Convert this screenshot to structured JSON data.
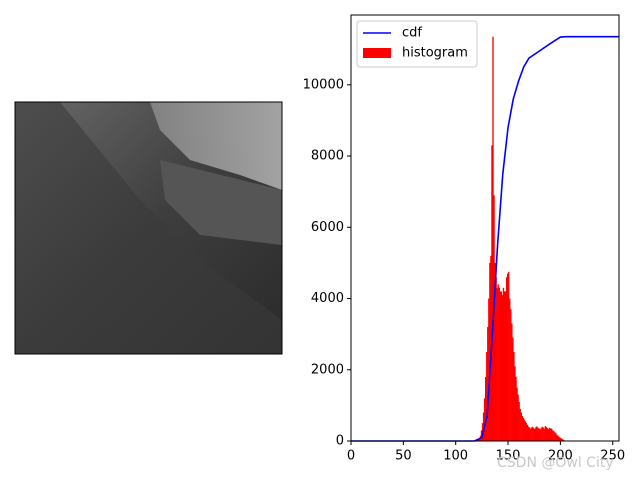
{
  "chart_data": {
    "type": "histogram",
    "name": "histogram",
    "color": "#ff0000",
    "bins": [
      0,
      1,
      2,
      3,
      4,
      5,
      6,
      7,
      8,
      9,
      10,
      11,
      12,
      13,
      14,
      15,
      16,
      17,
      18,
      19,
      20,
      21,
      22,
      23,
      24,
      25,
      26,
      27,
      28,
      29,
      30,
      31,
      32,
      33,
      34,
      35,
      36,
      37,
      38,
      39,
      40,
      41,
      42,
      43,
      44,
      45,
      46,
      47,
      48,
      49,
      50,
      51,
      52,
      53,
      54,
      55,
      56,
      57,
      58,
      59,
      60,
      61,
      62,
      63,
      64,
      65,
      66,
      67,
      68,
      69,
      70,
      71,
      72,
      73,
      74,
      75,
      76,
      77,
      78,
      79,
      80,
      81,
      82,
      83,
      84,
      85,
      86,
      87,
      88,
      89,
      90,
      91,
      92,
      93,
      94,
      95,
      96,
      97,
      98,
      99,
      100,
      101,
      102,
      103,
      104,
      105,
      106,
      107,
      108,
      109,
      110,
      111,
      112,
      113,
      114,
      115,
      116,
      117,
      118,
      119,
      120,
      121,
      122,
      123,
      124,
      125,
      126,
      127,
      128,
      129,
      130,
      131,
      132,
      133,
      134,
      135,
      136,
      137,
      138,
      139,
      140,
      141,
      142,
      143,
      144,
      145,
      146,
      147,
      148,
      149,
      150,
      151,
      152,
      153,
      154,
      155,
      156,
      157,
      158,
      159,
      160,
      161,
      162,
      163,
      164,
      165,
      166,
      167,
      168,
      169,
      170,
      171,
      172,
      173,
      174,
      175,
      176,
      177,
      178,
      179,
      180,
      181,
      182,
      183,
      184,
      185,
      186,
      187,
      188,
      189,
      190,
      191,
      192,
      193,
      194,
      195,
      196,
      197,
      198,
      199,
      200,
      201,
      202,
      203,
      204,
      205,
      206,
      207,
      208,
      209,
      210,
      211,
      212,
      213,
      214,
      215,
      216,
      217,
      218,
      219,
      220,
      221,
      222,
      223,
      224,
      225,
      226,
      227,
      228,
      229,
      230,
      231,
      232,
      233,
      234,
      235,
      236,
      237,
      238,
      239,
      240,
      241,
      242,
      243,
      244,
      245,
      246,
      247,
      248,
      249,
      250,
      251,
      252,
      253,
      254,
      255,
      256
    ],
    "values": [
      0,
      0,
      0,
      0,
      0,
      0,
      0,
      0,
      0,
      0,
      0,
      0,
      0,
      0,
      0,
      0,
      0,
      0,
      0,
      0,
      0,
      0,
      0,
      0,
      0,
      0,
      0,
      0,
      0,
      0,
      0,
      0,
      0,
      0,
      0,
      0,
      0,
      0,
      0,
      0,
      0,
      0,
      0,
      0,
      0,
      0,
      0,
      0,
      0,
      0,
      0,
      0,
      0,
      0,
      0,
      0,
      0,
      0,
      0,
      0,
      0,
      0,
      0,
      0,
      0,
      0,
      0,
      0,
      0,
      0,
      0,
      0,
      0,
      0,
      0,
      0,
      0,
      0,
      0,
      0,
      0,
      0,
      0,
      0,
      0,
      0,
      0,
      0,
      0,
      0,
      0,
      0,
      0,
      0,
      0,
      0,
      0,
      0,
      0,
      0,
      0,
      0,
      0,
      0,
      0,
      0,
      0,
      0,
      0,
      0,
      0,
      0,
      0,
      0,
      0,
      0,
      0,
      0,
      5,
      10,
      20,
      40,
      80,
      150,
      300,
      500,
      800,
      1200,
      1800,
      2500,
      3200,
      4000,
      5000,
      5200,
      8300,
      11350,
      6900,
      5000,
      4600,
      4300,
      4400,
      4300,
      4200,
      4200,
      4100,
      4300,
      4200,
      4200,
      4600,
      4700,
      4750,
      4000,
      3700,
      3300,
      2900,
      2500,
      2100,
      1800,
      1500,
      1300,
      1100,
      900,
      800,
      700,
      650,
      600,
      550,
      500,
      450,
      400,
      380,
      350,
      380,
      400,
      360,
      340,
      390,
      410,
      370,
      350,
      330,
      360,
      400,
      380,
      350,
      420,
      390,
      360,
      340,
      370,
      350,
      350,
      300,
      280,
      250,
      220,
      180,
      150,
      120,
      100,
      80,
      60,
      40,
      20,
      10,
      5,
      0,
      0,
      0,
      0,
      0,
      0,
      0,
      0,
      0,
      0,
      0,
      0,
      0,
      0,
      0,
      0,
      0,
      0,
      0,
      0,
      0,
      0,
      0,
      0,
      0,
      0,
      0,
      0,
      0,
      0,
      0,
      0,
      0,
      0,
      0,
      0,
      0,
      0,
      0,
      0,
      0,
      0,
      0,
      0,
      0,
      0,
      0,
      0,
      0,
      0
    ],
    "line": {
      "name": "cdf",
      "color": "#0000ff",
      "x": [
        0,
        118,
        125,
        130,
        135,
        140,
        145,
        150,
        155,
        160,
        165,
        170,
        180,
        190,
        200,
        205,
        256
      ],
      "values": [
        0,
        0,
        100,
        700,
        3000,
        5500,
        7500,
        8800,
        9600,
        10100,
        10500,
        10750,
        10950,
        11150,
        11340,
        11350,
        11350
      ]
    },
    "xlim": [
      0,
      256
    ],
    "xticks": [
      0,
      50,
      100,
      150,
      200,
      250
    ],
    "ylim": [
      0,
      11960
    ],
    "yticks": [
      0,
      2000,
      4000,
      6000,
      8000,
      10000
    ],
    "legend": "upper left",
    "watermark": "CSDN @Owl City"
  }
}
